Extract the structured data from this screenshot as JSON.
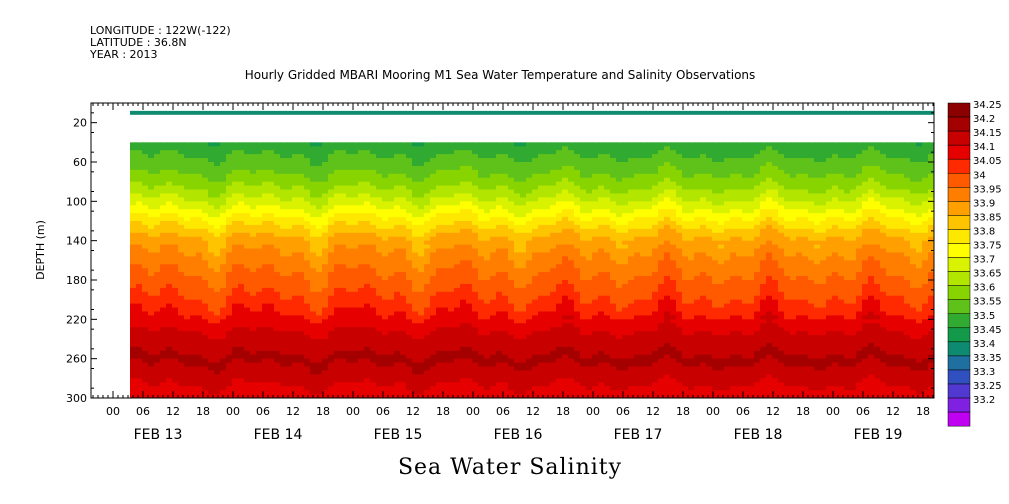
{
  "meta": {
    "longitude": "LONGITUDE : 122W(-122)",
    "latitude": "LATITUDE : 36.8N",
    "year": "YEAR : 2013"
  },
  "title": "Hourly Gridded MBARI Mooring M1 Sea Water Temperature and Salinity Observations",
  "bottom_title": "Sea Water Salinity",
  "chart_data": {
    "type": "heatmap",
    "title": "Hourly Gridded MBARI Mooring M1 Sea Water Temperature and Salinity Observations",
    "xlabel": "",
    "ylabel": "DEPTH (m)",
    "variable": "Sea Water Salinity",
    "ylim": [
      300,
      0
    ],
    "y_ticks": [
      "20",
      "60",
      "100",
      "140",
      "180",
      "220",
      "260",
      "300"
    ],
    "x_hour_ticks": [
      "00",
      "06",
      "12",
      "18",
      "00",
      "06",
      "12",
      "18",
      "00",
      "06",
      "12",
      "18",
      "00",
      "06",
      "12",
      "18",
      "00",
      "06",
      "12",
      "18",
      "00",
      "06",
      "12",
      "18",
      "00",
      "06",
      "12",
      "18"
    ],
    "x_day_labels": [
      "FEB 13",
      "FEB 14",
      "FEB 15",
      "FEB 16",
      "FEB 17",
      "FEB 18",
      "FEB 19"
    ],
    "colorbar_levels": [
      "34.25",
      "34.2",
      "34.15",
      "34.1",
      "34.05",
      "34",
      "33.95",
      "33.9",
      "33.85",
      "33.8",
      "33.75",
      "33.7",
      "33.65",
      "33.6",
      "33.55",
      "33.5",
      "33.45",
      "33.4",
      "33.35",
      "33.3",
      "33.25",
      "33.2"
    ],
    "colorbar_colors": [
      "#8b0000",
      "#a50000",
      "#c80000",
      "#e60000",
      "#ff2a00",
      "#ff5a00",
      "#ff7e00",
      "#ff9f00",
      "#ffc400",
      "#ffe800",
      "#ffff00",
      "#d8f200",
      "#b2e600",
      "#88d400",
      "#5fc21a",
      "#30aa30",
      "#129a4a",
      "#0e8a70",
      "#1f6fa0",
      "#3050c0",
      "#5038d0",
      "#8020e0",
      "#c000f0"
    ],
    "profile": [
      {
        "depth": 10,
        "value": 33.43
      },
      {
        "depth": 40,
        "value": 33.52
      },
      {
        "depth": 60,
        "value": 33.57
      },
      {
        "depth": 80,
        "value": 33.63
      },
      {
        "depth": 100,
        "value": 33.72
      },
      {
        "depth": 120,
        "value": 33.83
      },
      {
        "depth": 140,
        "value": 33.93
      },
      {
        "depth": 160,
        "value": 33.97
      },
      {
        "depth": 180,
        "value": 34.02
      },
      {
        "depth": 200,
        "value": 34.06
      },
      {
        "depth": 220,
        "value": 34.12
      },
      {
        "depth": 240,
        "value": 34.18
      },
      {
        "depth": 260,
        "value": 34.21
      },
      {
        "depth": 280,
        "value": 34.16
      },
      {
        "depth": 300,
        "value": 34.12
      }
    ]
  }
}
